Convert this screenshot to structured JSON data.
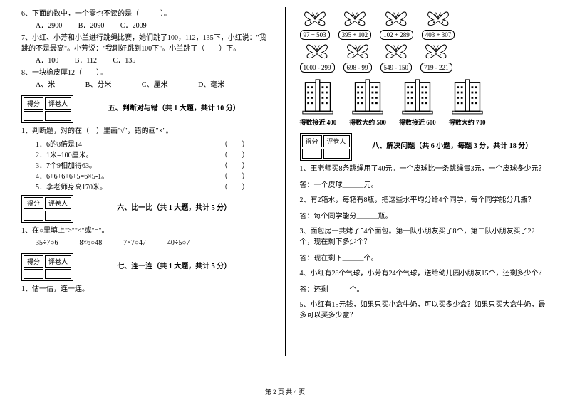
{
  "left": {
    "q6": {
      "text": "6、下面的数中，一个零也不读的是（　　　）。",
      "a": "A．2900",
      "b": "B．2090",
      "c": "C．2009"
    },
    "q7": {
      "text": "7、小红、小芳和小兰进行跳绳比赛，她们跳了100，112，135下，小红说：\"我跳的不是最高\"。小芳说：\"我刚好跳到100下\"。小兰跳了（　　）下。",
      "a": "A．100",
      "b": "B．112",
      "c": "C．135"
    },
    "q8": {
      "text": "8、一块橡皮厚12（　　）。",
      "a": "A、米",
      "b": "B、分米",
      "c": "C、厘米",
      "d": "D、毫米"
    },
    "score": {
      "a": "得分",
      "b": "评卷人"
    },
    "sec5": {
      "title": "五、判断对与错（共 1 大题，共计 10 分）",
      "lead": "1、判断题，对的在（　）里画\"√\"，错的画\"×\"。",
      "i1": "1．6的8倍是14",
      "i2": "2．1米=100厘米。",
      "i3": "3．7个9相加得63。",
      "i4": "4．6+6+6+6+5=6×5-1。",
      "i5": "5．李老师身高170米。",
      "paren": "（　　）"
    },
    "sec6": {
      "title": "六、比一比（共 1 大题，共计 5 分）",
      "lead": "1、在○里填上\">\"\"<\"或\"=\"。",
      "row": "35÷7○6　　　8×6○48　　　7×7○47　　　40÷5○7"
    },
    "sec7": {
      "title": "七、连一连（共 1 大题，共计 5 分）",
      "lead": "1、估一估，连一连。"
    }
  },
  "right": {
    "butterflies1": [
      {
        "expr": "97 + 503"
      },
      {
        "expr": "395 + 102"
      },
      {
        "expr": "102 + 289"
      },
      {
        "expr": "403 + 307"
      }
    ],
    "butterflies2": [
      {
        "expr": "1000 - 299"
      },
      {
        "expr": "698 - 99"
      },
      {
        "expr": "549 - 150"
      },
      {
        "expr": "719 - 221"
      }
    ],
    "buildings": [
      {
        "label": "得数接近 400"
      },
      {
        "label": "得数大约 500"
      },
      {
        "label": "得数接近 600"
      },
      {
        "label": "得数大约 700"
      }
    ],
    "score": {
      "a": "得分",
      "b": "评卷人"
    },
    "sec8": {
      "title": "八、解决问题（共 6 小题，每题 3 分，共计 18 分）",
      "q1": "1、王老师买8条跳绳用了40元。一个皮球比一条跳绳贵3元，一个皮球多少元？",
      "a1": "答：一个皮球＿＿＿元。",
      "q2": "2、有2箱水，每箱有8瓶，把这些水平均分给4个同学，每个同学能分几瓶？",
      "a2": "答：每个同学能分＿＿＿瓶。",
      "q3": "3、面包房一共烤了54个面包。第一队小朋友买了8个，第二队小朋友买了22个，现在剩下多少个？",
      "a3": "答：现在剩下＿＿＿个。",
      "q4": "4、小红有28个气球，小芳有24个气球，送给幼儿园小朋友15个，还剩多少个？",
      "a4": "答：还剩＿＿＿个。",
      "q5": "5、小红有15元钱，如果只买小盒牛奶，可以买多少盒？如果只买大盒牛奶，最多可以买多少盒？"
    }
  },
  "pagenum": "第 2 页 共 4 页"
}
